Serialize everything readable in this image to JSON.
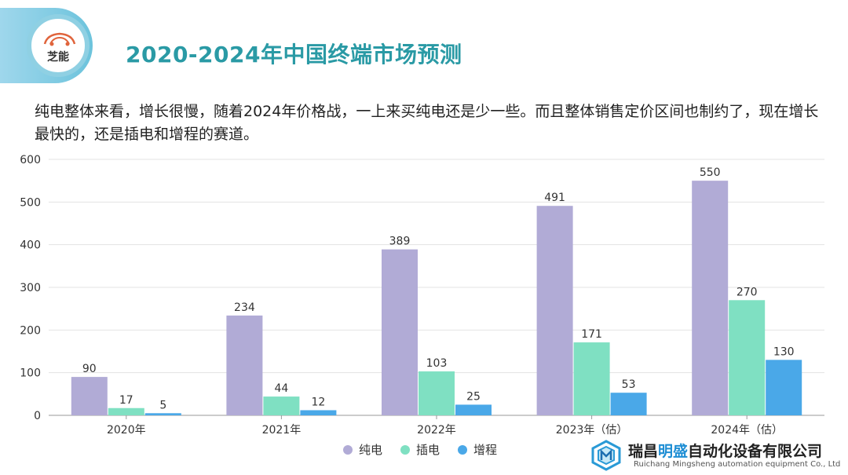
{
  "header": {
    "logo_text": "芝能",
    "title": "2020-2024年中国终端市场预测"
  },
  "description": "纯电整体来看，增长很慢，随着2024年价格战，一上来买纯电还是少一些。而且整体销售定价区间也制约了，现在增长最快的，还是插电和增程的赛道。",
  "chart_data": {
    "type": "bar",
    "categories": [
      "2020年",
      "2021年",
      "2022年",
      "2023年（估）",
      "2024年（估）"
    ],
    "series": [
      {
        "name": "纯电",
        "color": "#b1abd6",
        "values": [
          90,
          234,
          389,
          491,
          550
        ]
      },
      {
        "name": "插电",
        "color": "#7fe0c2",
        "values": [
          17,
          44,
          103,
          171,
          270
        ]
      },
      {
        "name": "增程",
        "color": "#4aa8e8",
        "values": [
          5,
          12,
          25,
          53,
          130
        ]
      }
    ],
    "ylim": [
      0,
      600
    ],
    "yticks": [
      0,
      100,
      200,
      300,
      400,
      500,
      600
    ],
    "grid": true,
    "legend_position": "bottom-center",
    "data_labels": true
  },
  "footer": {
    "company_prefix": "瑞昌",
    "company_highlight": "明盛",
    "company_suffix": "自动化设备有限公司",
    "company_en": "Ruichang Mingsheng automation equipment Co., Ltd"
  }
}
